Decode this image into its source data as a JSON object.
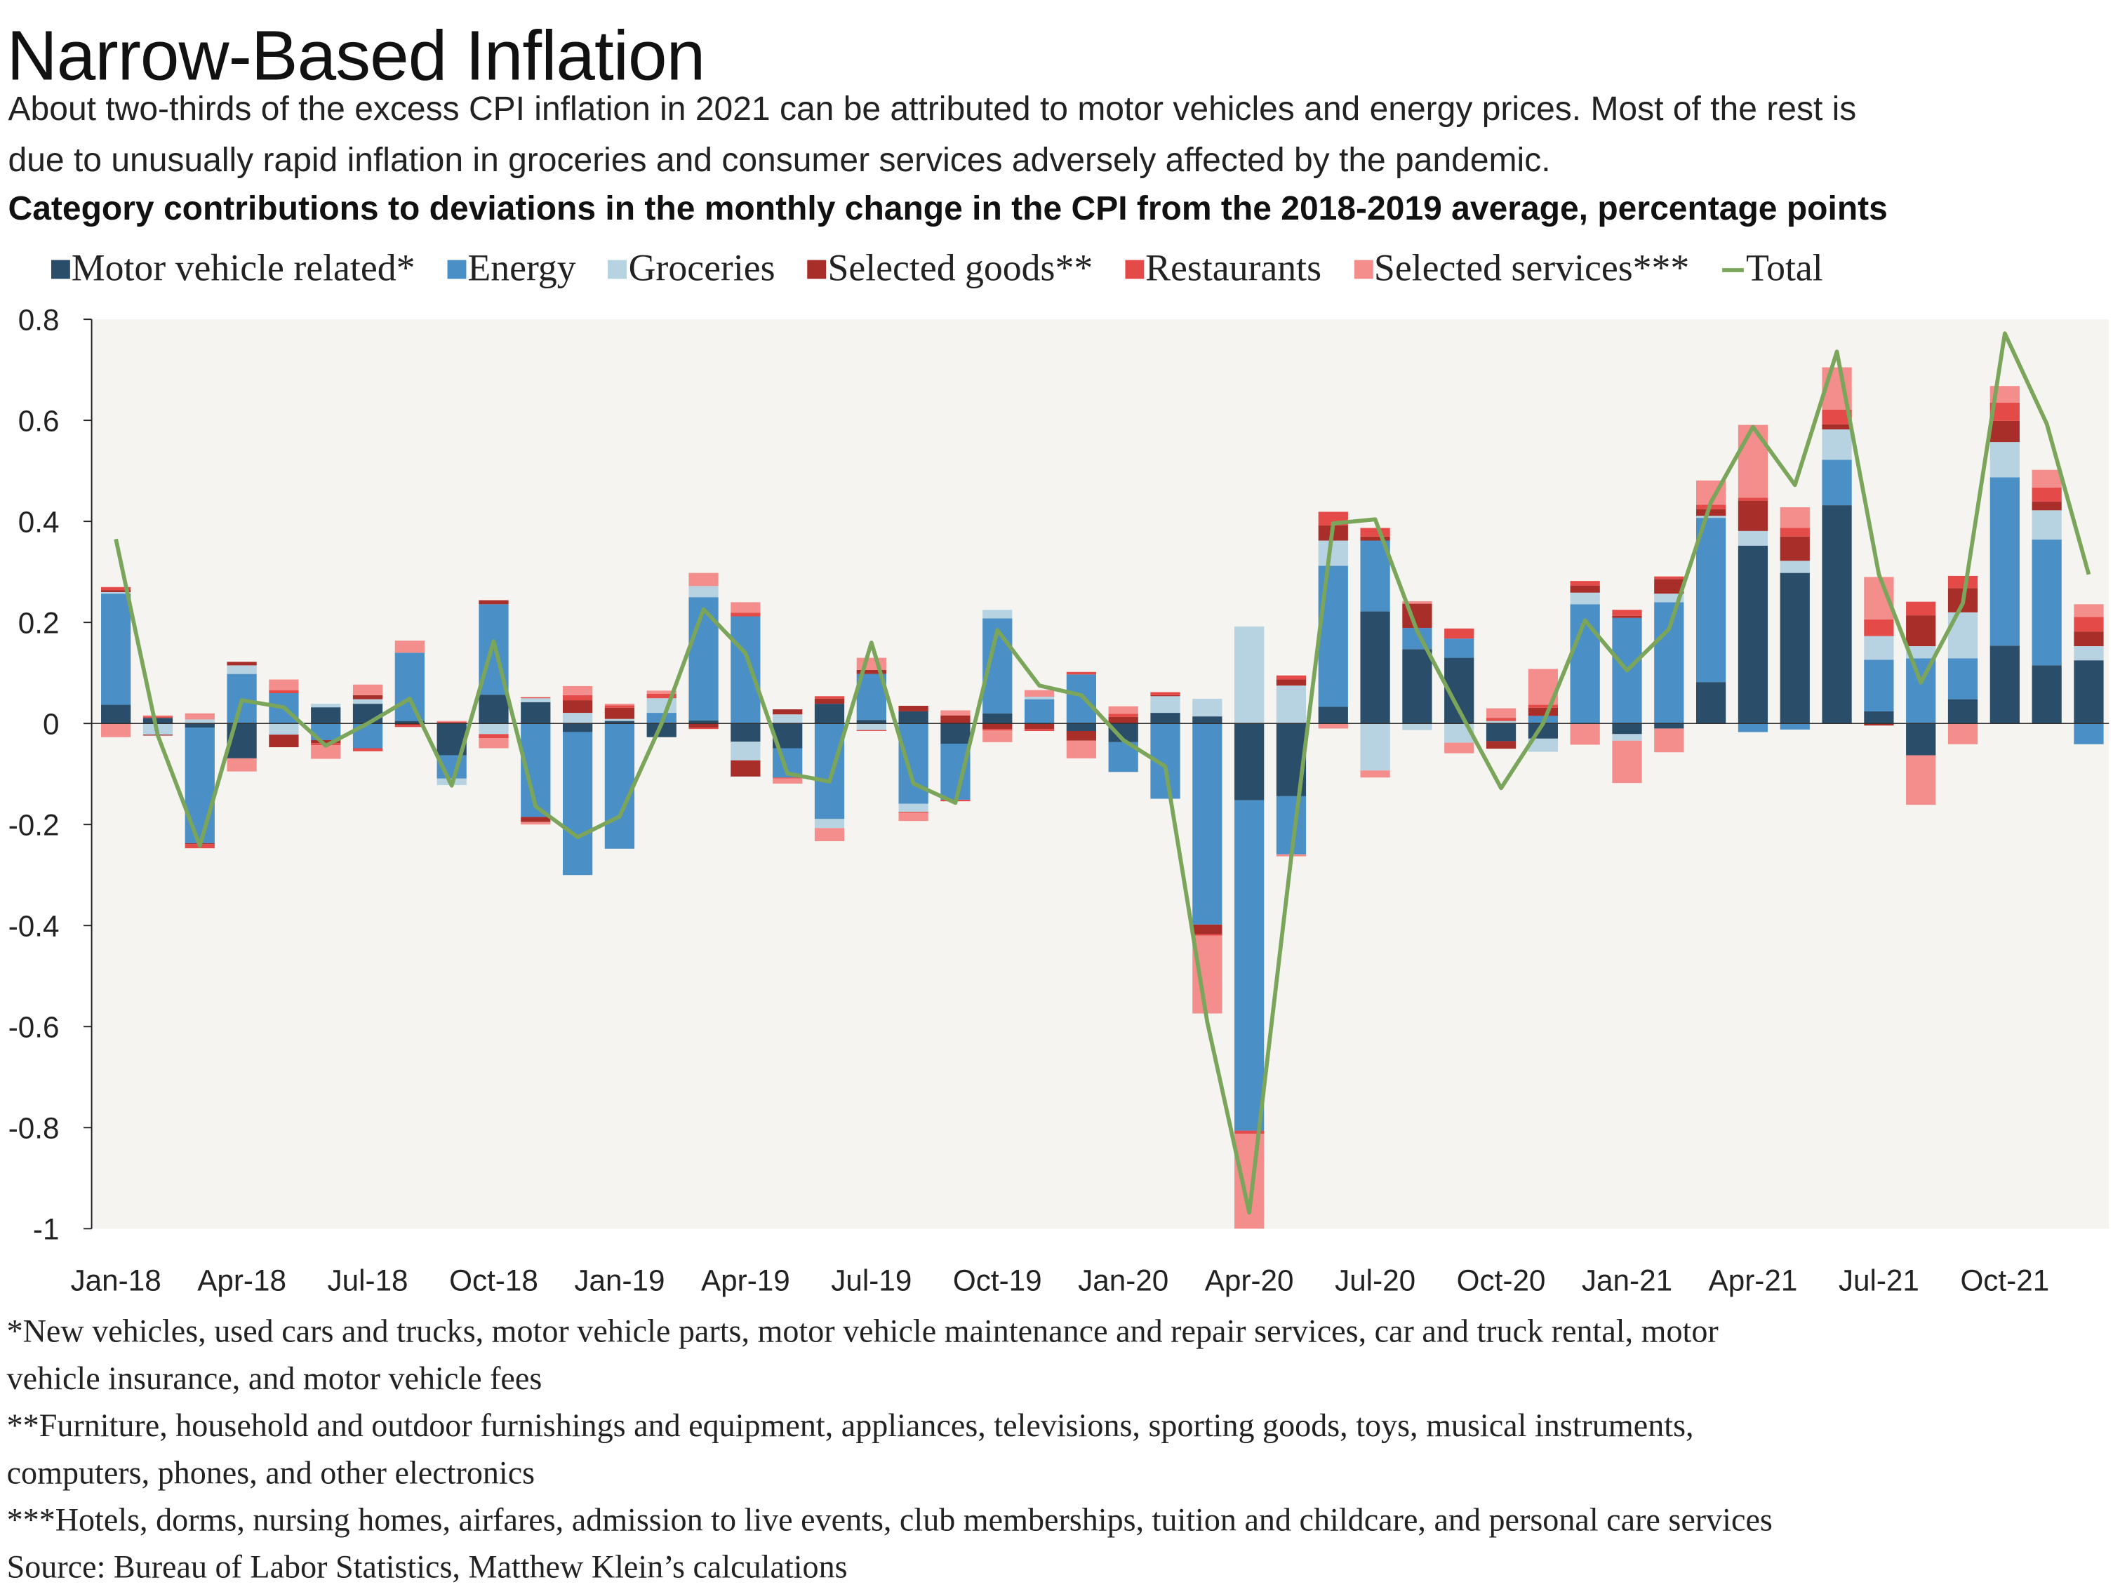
{
  "title": "Narrow-Based Inflation",
  "subtitle_lines": [
    "About two-thirds of the excess CPI inflation in 2021 can be attributed to motor vehicles and energy prices. Most of the rest is",
    "due to unusually rapid inflation in groceries and consumer services adversely affected by the pandemic."
  ],
  "footnotes": [
    "*New vehicles, used cars and trucks, motor vehicle parts, motor vehicle maintenance and repair services, car and truck rental, motor",
    "vehicle insurance, and motor vehicle fees",
    "**Furniture, household and outdoor furnishings and equipment, appliances, televisions, sporting goods, toys, musical instruments,",
    "computers, phones, and other electronics",
    "***Hotels, dorms, nursing homes, airfares, admission to live events, club memberships, tuition and childcare, and personal care services",
    "Source: Bureau of Labor Statistics, Matthew Klein’s calculations"
  ],
  "chart_data": {
    "type": "bar",
    "stacked": true,
    "title": "Category contributions to deviations in the monthly change in the CPI from the 2018-2019 average, percentage points",
    "xlabel": "",
    "ylabel": "",
    "ylim": [
      -1,
      0.8
    ],
    "y_ticks": [
      0.8,
      0.6,
      0.4,
      0.2,
      0,
      -0.2,
      -0.4,
      -0.6,
      -0.8,
      -1
    ],
    "y_tick_labels": [
      "0.8",
      "0.6",
      "0.4",
      "0.2",
      "0",
      "-0.2",
      "-0.4",
      "-0.6",
      "-0.8",
      "-1"
    ],
    "x_tick_labels": [
      "Jan-18",
      "Apr-18",
      "Jul-18",
      "Oct-18",
      "Jan-19",
      "Apr-19",
      "Jul-19",
      "Oct-19",
      "Jan-20",
      "Apr-20",
      "Jul-20",
      "Oct-20",
      "Jan-21",
      "Apr-21",
      "Jul-21",
      "Oct-21"
    ],
    "categories": [
      "Jan-18",
      "Feb-18",
      "Mar-18",
      "Apr-18",
      "May-18",
      "Jun-18",
      "Jul-18",
      "Aug-18",
      "Sep-18",
      "Oct-18",
      "Nov-18",
      "Dec-18",
      "Jan-19",
      "Feb-19",
      "Mar-19",
      "Apr-19",
      "May-19",
      "Jun-19",
      "Jul-19",
      "Aug-19",
      "Sep-19",
      "Oct-19",
      "Nov-19",
      "Dec-19",
      "Jan-20",
      "Feb-20",
      "Mar-20",
      "Apr-20",
      "May-20",
      "Jun-20",
      "Jul-20",
      "Aug-20",
      "Sep-20",
      "Oct-20",
      "Nov-20",
      "Dec-20",
      "Jan-21",
      "Feb-21",
      "Mar-21",
      "Apr-21",
      "May-21",
      "Jun-21",
      "Jul-21",
      "Aug-21",
      "Sep-21",
      "Oct-21",
      "Nov-21",
      "Dec-21"
    ],
    "grid": false,
    "legend_position": "top",
    "background": "#f6f4f0",
    "series": [
      {
        "name": "Motor vehicle related*",
        "kind": "bar",
        "color": "#2a4d69",
        "values": [
          0.037,
          0.011,
          -0.008,
          -0.069,
          0,
          0.032,
          0.039,
          0.005,
          -0.063,
          0.057,
          0.042,
          -0.017,
          0.005,
          -0.027,
          0.006,
          -0.036,
          -0.049,
          0.039,
          0.007,
          0.024,
          -0.04,
          0.02,
          0,
          -0.015,
          -0.037,
          0.021,
          0.014,
          -0.152,
          -0.144,
          0.033,
          0.222,
          0.147,
          0.13,
          -0.035,
          -0.03,
          0,
          -0.021,
          -0.01,
          0.082,
          0.352,
          0.298,
          0.432,
          0.024,
          -0.063,
          0.048,
          0.154,
          0.115,
          0.125
        ]
      },
      {
        "name": "Energy",
        "kind": "bar",
        "color": "#4a8fc5",
        "values": [
          0.22,
          0,
          -0.229,
          0.098,
          0.06,
          -0.033,
          -0.049,
          0.135,
          -0.046,
          0.179,
          -0.185,
          -0.283,
          -0.248,
          0.021,
          0.244,
          0.212,
          -0.058,
          -0.189,
          0.091,
          -0.159,
          -0.111,
          0.188,
          0.048,
          0.097,
          -0.059,
          -0.149,
          -0.398,
          -0.654,
          -0.115,
          0.279,
          0.14,
          0.042,
          0.038,
          0,
          0.015,
          0.236,
          0.209,
          0.24,
          0.325,
          -0.017,
          -0.012,
          0.09,
          0.102,
          0.129,
          0.081,
          0.333,
          0.249,
          -0.041
        ]
      },
      {
        "name": "Groceries",
        "kind": "bar",
        "color": "#b7d2e0",
        "values": [
          0.003,
          -0.022,
          0.008,
          0.017,
          -0.022,
          0.007,
          0.009,
          0,
          -0.013,
          -0.021,
          0.008,
          0.021,
          0.004,
          0.029,
          0.022,
          -0.037,
          0.018,
          -0.018,
          -0.013,
          -0.016,
          0,
          0.017,
          0.005,
          0,
          0,
          0.033,
          0.035,
          0.192,
          0.075,
          0.05,
          -0.093,
          -0.013,
          -0.038,
          0.005,
          -0.026,
          0.023,
          -0.013,
          0.017,
          0.004,
          0.029,
          0.024,
          0.06,
          0.047,
          0.024,
          0.091,
          0.07,
          0.058,
          0.028
        ]
      },
      {
        "name": "Selected goods**",
        "kind": "bar",
        "color": "#a82e2a",
        "values": [
          0.004,
          -0.002,
          -0.002,
          0.007,
          -0.025,
          -0.006,
          0.008,
          -0.003,
          0,
          0.008,
          -0.01,
          0.025,
          0.022,
          0,
          -0.008,
          -0.032,
          0.01,
          0.01,
          0.008,
          0.011,
          0.016,
          -0.011,
          -0.011,
          -0.019,
          0.013,
          0.002,
          -0.019,
          0,
          0.012,
          0.03,
          0.008,
          0.048,
          0,
          -0.015,
          0.016,
          0.014,
          0.004,
          0.029,
          0.013,
          0.06,
          0.048,
          0.01,
          -0.004,
          0.061,
          0.048,
          0.042,
          0.017,
          0.029
        ]
      },
      {
        "name": "Restaurants",
        "kind": "bar",
        "color": "#e34a48",
        "values": [
          0.006,
          0.003,
          -0.008,
          0,
          0.006,
          -0.004,
          -0.006,
          -0.004,
          0.003,
          -0.008,
          0.002,
          0.01,
          0.005,
          0.009,
          -0.003,
          0.007,
          -0.002,
          0.005,
          -0.002,
          -0.002,
          -0.003,
          -0.003,
          -0.004,
          0.005,
          0.006,
          0.006,
          -0.003,
          -0.006,
          0.008,
          0.027,
          0.017,
          0,
          0.02,
          0.006,
          0.006,
          0.009,
          0.012,
          0.005,
          0.009,
          0.006,
          0.017,
          0.029,
          0.033,
          0.027,
          0.024,
          0.036,
          0.028,
          0.029
        ]
      },
      {
        "name": "Selected services***",
        "kind": "bar",
        "color": "#f48e8c",
        "values": [
          -0.027,
          0.002,
          0.012,
          -0.026,
          0.021,
          -0.027,
          0.021,
          0.024,
          0.002,
          -0.02,
          -0.005,
          0.018,
          0.003,
          0.006,
          0.026,
          0.021,
          -0.01,
          -0.026,
          0.024,
          -0.016,
          0.01,
          -0.023,
          0.013,
          -0.035,
          0.015,
          0,
          -0.154,
          -0.2,
          -0.004,
          -0.01,
          -0.014,
          0.005,
          -0.021,
          0.019,
          0.071,
          -0.042,
          -0.084,
          -0.047,
          0.048,
          0.144,
          0.041,
          0.084,
          0.084,
          -0.098,
          -0.041,
          0.033,
          0.035,
          0.025
        ]
      },
      {
        "name": "Total",
        "kind": "line",
        "color": "#7aa55a",
        "values": [
          0.365,
          -0.024,
          -0.242,
          0.046,
          0.032,
          -0.044,
          0,
          0.049,
          -0.123,
          0.163,
          -0.164,
          -0.225,
          -0.184,
          0,
          0.226,
          0.139,
          -0.099,
          -0.115,
          0.16,
          -0.119,
          -0.157,
          0.185,
          0.075,
          0.056,
          -0.033,
          -0.085,
          -0.591,
          -0.968,
          -0.265,
          0.396,
          0.404,
          0.183,
          0.026,
          -0.128,
          0,
          0.204,
          0.105,
          0.187,
          0.438,
          0.587,
          0.472,
          0.736,
          0.295,
          0.081,
          0.238,
          0.772,
          0.593,
          0.295
        ]
      }
    ]
  }
}
